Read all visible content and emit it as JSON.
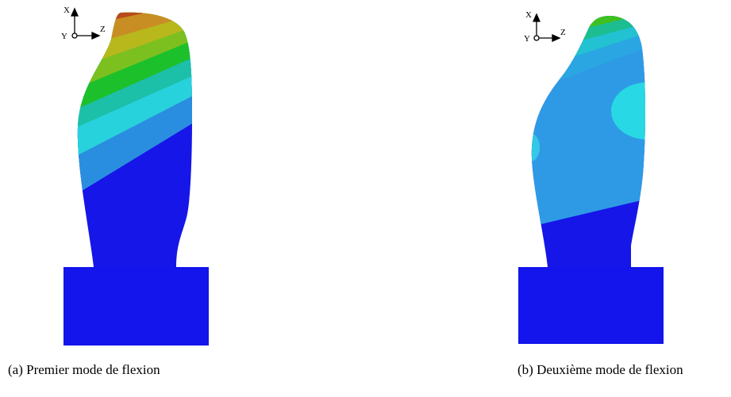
{
  "panels": [
    {
      "axes": {
        "x": "X",
        "y": "Y",
        "z": "Z"
      },
      "caption": "(a) Premier mode de flexion"
    },
    {
      "axes": {
        "x": "X",
        "y": "Y",
        "z": "Z"
      },
      "caption": "(b) Deuxième mode de flexion"
    }
  ]
}
